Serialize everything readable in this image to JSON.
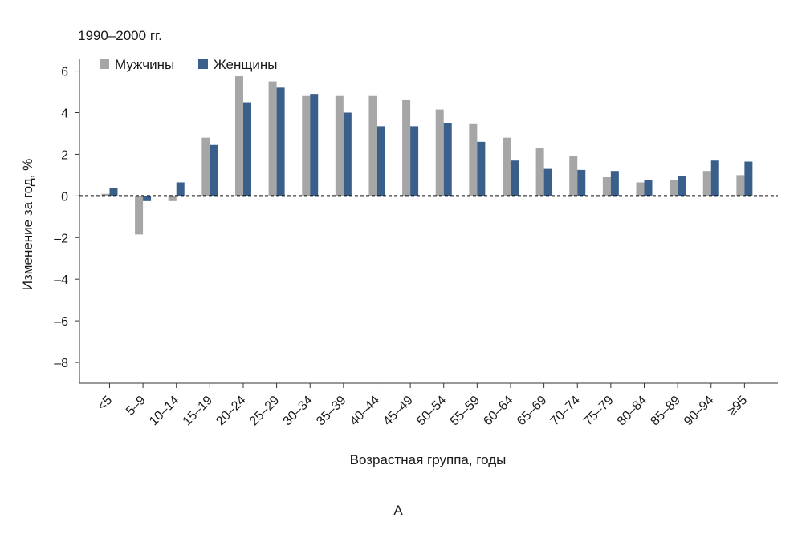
{
  "chart_data": {
    "type": "bar",
    "title": "1990–2000 гг.",
    "xlabel": "Возрастная группа, годы",
    "ylabel": "Изменение за год, %",
    "panel_label": "А",
    "ylim": [
      -9,
      6.6
    ],
    "yticks": [
      6,
      4,
      2,
      0,
      -2,
      -4,
      -6,
      -8
    ],
    "ytick_labels": [
      "6",
      "4",
      "2",
      "0",
      "–2",
      "–4",
      "–6",
      "–8"
    ],
    "grid": false,
    "legend_position": "top-left",
    "zero_line": "dashed",
    "categories": [
      "<5",
      "5–9",
      "10–14",
      "15–19",
      "20–24",
      "25–29",
      "30–34",
      "35–39",
      "40–44",
      "45–49",
      "50–54",
      "55–59",
      "60–64",
      "65–69",
      "70–74",
      "75–79",
      "80–84",
      "85–89",
      "90–94",
      "≥95"
    ],
    "series": [
      {
        "name": "Мужчины",
        "color": "#a6a6a6",
        "values": [
          0.1,
          -1.85,
          -0.25,
          2.8,
          5.75,
          5.5,
          4.8,
          4.8,
          4.8,
          4.6,
          4.15,
          3.45,
          2.8,
          2.3,
          1.9,
          0.9,
          0.65,
          0.75,
          1.2,
          1.0
        ]
      },
      {
        "name": "Женщины",
        "color": "#3a5f8a",
        "values": [
          0.4,
          -0.25,
          0.65,
          2.45,
          4.5,
          5.2,
          4.9,
          4.0,
          3.35,
          3.35,
          3.5,
          2.6,
          1.7,
          1.3,
          1.25,
          1.2,
          0.75,
          0.95,
          1.7,
          1.65
        ]
      }
    ]
  }
}
